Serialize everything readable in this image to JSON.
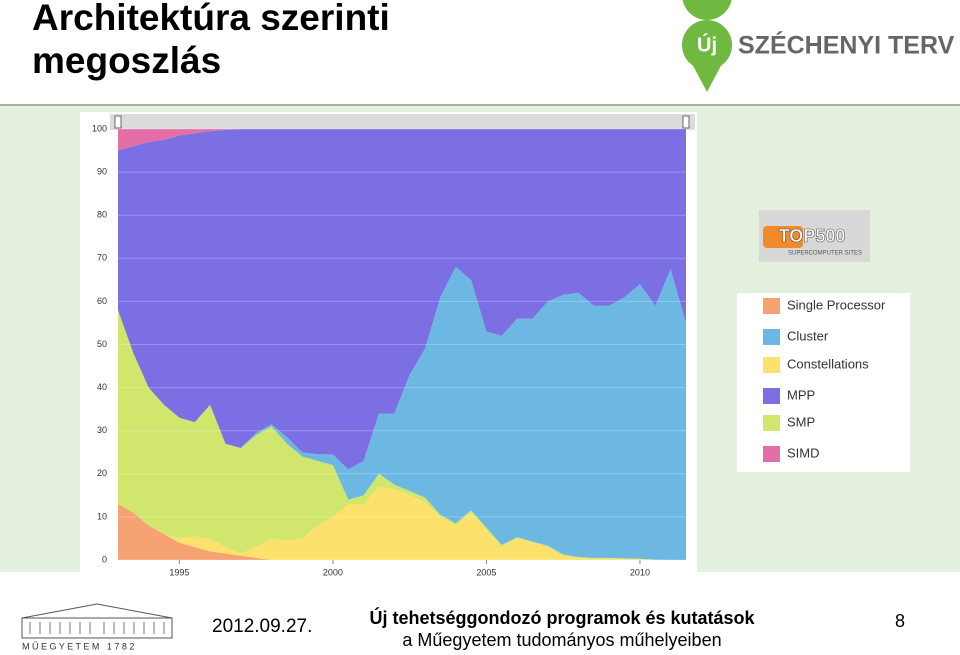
{
  "slide": {
    "title_lines": [
      "Architektúra szerinti",
      "megoszlás"
    ],
    "logo": {
      "pin": "Új",
      "name": "SZÉCHENYI TERV"
    },
    "badge": {
      "name": "TOP500",
      "sub": "SUPERCOMPUTER SITES"
    },
    "footer": {
      "university": "M Ű E G Y E T E M   1 7 8 2",
      "date": "2012.09.27.",
      "line1": "Új tehetséggondozó programok és kutatások",
      "line2": "a Műegyetem tudományos műhelyeiben",
      "page": "8"
    }
  },
  "chart_data": {
    "type": "stacked_area",
    "x": [
      1993,
      1993.5,
      1994,
      1994.5,
      1995,
      1995.5,
      1996,
      1996.5,
      1997,
      1997.5,
      1998,
      1998.5,
      1999,
      1999.5,
      2000,
      2000.5,
      2001,
      2001.5,
      2002,
      2002.5,
      2003,
      2003.5,
      2004,
      2004.5,
      2005,
      2005.5,
      2006,
      2006.5,
      2007,
      2007.5,
      2008,
      2008.5,
      2009,
      2009.5,
      2010,
      2010.5,
      2011,
      2011.5
    ],
    "xlim": [
      1993,
      2011.5
    ],
    "xticks": [
      1995,
      2000,
      2005,
      2010
    ],
    "ylim": [
      0,
      100
    ],
    "yticks": [
      0,
      10,
      20,
      30,
      40,
      50,
      60,
      70,
      80,
      90,
      100
    ],
    "series": [
      {
        "name": "Single Processor",
        "color": "#f7a272",
        "values": [
          13,
          11,
          8,
          6,
          4,
          3,
          2,
          1.5,
          1,
          0.5,
          0,
          0,
          0,
          0,
          0,
          0,
          0,
          0,
          0,
          0,
          0,
          0,
          0,
          0,
          0,
          0,
          0,
          0,
          0,
          0,
          0,
          0,
          0,
          0,
          0,
          0,
          0,
          0
        ]
      },
      {
        "name": "Cluster",
        "color": "#6cb8e2",
        "values": [
          0,
          0,
          0,
          0,
          0,
          0,
          0,
          0,
          0,
          0.5,
          0.5,
          1.5,
          1,
          1.5,
          2.5,
          7,
          8,
          14,
          16.5,
          27,
          34.5,
          50.5,
          59.5,
          53.5,
          45.5,
          48.5,
          50.7,
          51.7,
          56.7,
          60.2,
          61.3,
          58.5,
          58.5,
          60.6,
          63.7,
          58.9,
          67.5,
          55
        ]
      },
      {
        "name": "Constellations",
        "color": "#fce26c",
        "values": [
          0,
          0,
          0,
          0,
          1,
          2.5,
          3,
          1.5,
          0.5,
          2.5,
          5,
          4.5,
          5,
          8,
          10,
          13,
          13,
          17,
          16.5,
          15,
          13.5,
          10,
          8,
          11,
          7,
          3,
          5,
          4,
          3,
          1,
          0.5,
          0.3,
          0.3,
          0.2,
          0.2,
          0,
          0,
          0
        ]
      },
      {
        "name": "MPP",
        "color": "#7b6fe3",
        "values": [
          37,
          48,
          57,
          61.5,
          65.5,
          67,
          63.5,
          72.8,
          74,
          70.5,
          68.5,
          71.5,
          75,
          75.5,
          75.5,
          79,
          77,
          66,
          66,
          57,
          51,
          39,
          32,
          35,
          47,
          48,
          44,
          44,
          40,
          38.5,
          38,
          41,
          41,
          39,
          36,
          41,
          32.5,
          45
        ]
      },
      {
        "name": "SMP",
        "color": "#d0e66c",
        "values": [
          45,
          37,
          32,
          30,
          28,
          26.5,
          31,
          24,
          24.5,
          26,
          26,
          22.5,
          19,
          15,
          12,
          1,
          2,
          3,
          1,
          1,
          1,
          0.5,
          0.5,
          0.5,
          0.5,
          0.5,
          0.3,
          0.3,
          0.3,
          0.3,
          0.2,
          0.2,
          0.2,
          0.2,
          0.1,
          0.1,
          0,
          0
        ]
      },
      {
        "name": "SIMD",
        "color": "#e46fa8",
        "values": [
          5,
          4,
          3,
          2.5,
          1.5,
          1,
          0.5,
          0.2,
          0,
          0,
          0,
          0,
          0,
          0,
          0,
          0,
          0,
          0,
          0,
          0,
          0,
          0,
          0,
          0,
          0,
          0,
          0,
          0,
          0,
          0,
          0,
          0,
          0,
          0,
          0,
          0,
          0,
          0
        ]
      }
    ]
  }
}
